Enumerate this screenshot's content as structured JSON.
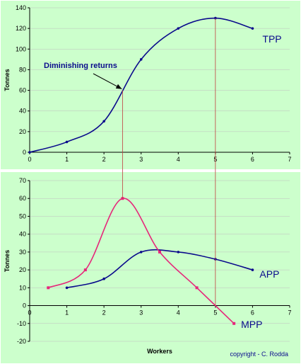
{
  "colors": {
    "panel_background": "#ccffcc",
    "axis": "#000000",
    "gridline": "#bfbfbf",
    "navy_series": "#0a0a8c",
    "magenta_series": "#e6267a",
    "guide_line": "#c04040"
  },
  "chart_data": [
    {
      "type": "line",
      "ylabel": "Tonnes",
      "xlim": [
        0,
        7
      ],
      "ylim": [
        0,
        140
      ],
      "x_ticks": [
        "0",
        "1",
        "2",
        "3",
        "4",
        "5",
        "6",
        "7"
      ],
      "y_ticks": [
        "0",
        "20",
        "40",
        "60",
        "80",
        "100",
        "120",
        "140"
      ],
      "grid": "horizontal",
      "series": [
        {
          "name": "TPP",
          "color": "#0a0a8c",
          "x": [
            0,
            1,
            2,
            3,
            4,
            5,
            6
          ],
          "y": [
            0,
            10,
            30,
            90,
            120,
            130,
            120
          ]
        }
      ],
      "annotation": {
        "text": "Diminishing returns",
        "x": 2.5,
        "y": 60
      }
    },
    {
      "type": "line",
      "xlabel": "Workers",
      "ylabel": "Tonnes",
      "xlim": [
        0,
        7
      ],
      "ylim": [
        -20,
        70
      ],
      "x_ticks": [
        "0",
        "1",
        "2",
        "3",
        "4",
        "5",
        "6",
        "7"
      ],
      "y_ticks": [
        "-20",
        "-10",
        "0",
        "10",
        "20",
        "30",
        "40",
        "50",
        "60",
        "70"
      ],
      "grid": "horizontal",
      "series": [
        {
          "name": "APP",
          "color": "#0a0a8c",
          "x": [
            1,
            2,
            3,
            4,
            5,
            6
          ],
          "y": [
            10,
            15,
            30,
            30,
            26,
            20
          ]
        },
        {
          "name": "MPP",
          "color": "#e6267a",
          "x": [
            0.5,
            1.5,
            2.5,
            3.5,
            4.5,
            5.5
          ],
          "y": [
            10,
            20,
            60,
            30,
            10,
            -10
          ]
        }
      ],
      "guide_lines_x": [
        2.5,
        5
      ]
    }
  ],
  "credit": "copyright - C. Rodda"
}
